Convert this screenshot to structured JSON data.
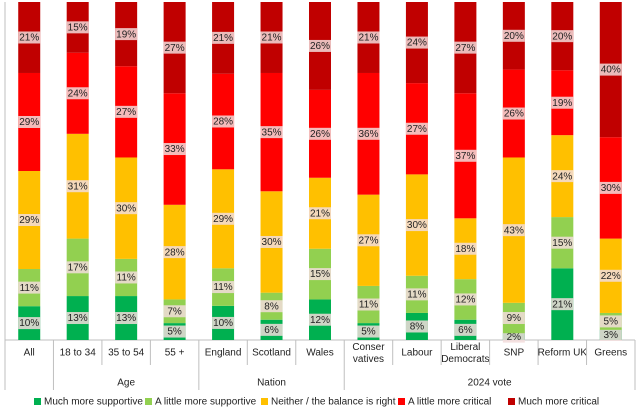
{
  "chart_data": {
    "type": "stacked_bar_100",
    "groups": [
      {
        "name": null,
        "categories": [
          "All"
        ]
      },
      {
        "name": "Age",
        "categories": [
          "18 to 34",
          "35 to 54",
          "55 +"
        ]
      },
      {
        "name": "Nation",
        "categories": [
          "England",
          "Scotland",
          "Wales"
        ]
      },
      {
        "name": "2024 vote",
        "categories": [
          "Conser\nvatives",
          "Labour",
          "Liberal\nDemocrats",
          "SNP",
          "Reform UK",
          "Greens"
        ]
      }
    ],
    "series": [
      {
        "name": "Much more supportive",
        "color": "#00b050",
        "values": [
          10,
          13,
          13,
          5,
          10,
          6,
          12,
          5,
          8,
          6,
          2,
          21,
          3
        ],
        "value_labels": [
          "10%",
          "13%",
          "13%",
          "5%",
          "10%",
          "6%",
          "12%",
          "5%",
          "8%",
          "6%",
          "2%",
          "21%",
          "3%"
        ]
      },
      {
        "name": "A little more supportive",
        "color": "#92d050",
        "values": [
          11,
          17,
          11,
          7,
          11,
          8,
          15,
          11,
          11,
          12,
          9,
          15,
          5
        ],
        "value_labels": [
          "11%",
          "17%",
          "11%",
          "7%",
          "11%",
          "8%",
          "15%",
          "11%",
          "11%",
          "12%",
          "9%",
          "15%",
          "5%"
        ]
      },
      {
        "name": "Neither / the balance is right",
        "color": "#ffc000",
        "values": [
          29,
          31,
          30,
          28,
          29,
          30,
          21,
          27,
          30,
          18,
          43,
          24,
          22
        ],
        "value_labels": [
          "29%",
          "31%",
          "30%",
          "28%",
          "29%",
          "30%",
          "21%",
          "27%",
          "30%",
          "18%",
          "43%",
          "24%",
          "22%"
        ]
      },
      {
        "name": "A little more critical",
        "color": "#ff0000",
        "values": [
          29,
          24,
          27,
          33,
          28,
          35,
          26,
          36,
          27,
          37,
          26,
          19,
          30
        ],
        "value_labels": [
          "29%",
          "24%",
          "27%",
          "33%",
          "28%",
          "35%",
          "26%",
          "36%",
          "27%",
          "37%",
          "26%",
          "19%",
          "30%"
        ]
      },
      {
        "name": "Much more critical",
        "color": "#c00000",
        "values": [
          21,
          15,
          19,
          27,
          21,
          21,
          26,
          21,
          24,
          27,
          20,
          20,
          40
        ],
        "value_labels": [
          "21%",
          "15%",
          "19%",
          "27%",
          "21%",
          "21%",
          "26%",
          "21%",
          "24%",
          "27%",
          "20%",
          "20%",
          "40%"
        ]
      }
    ]
  }
}
